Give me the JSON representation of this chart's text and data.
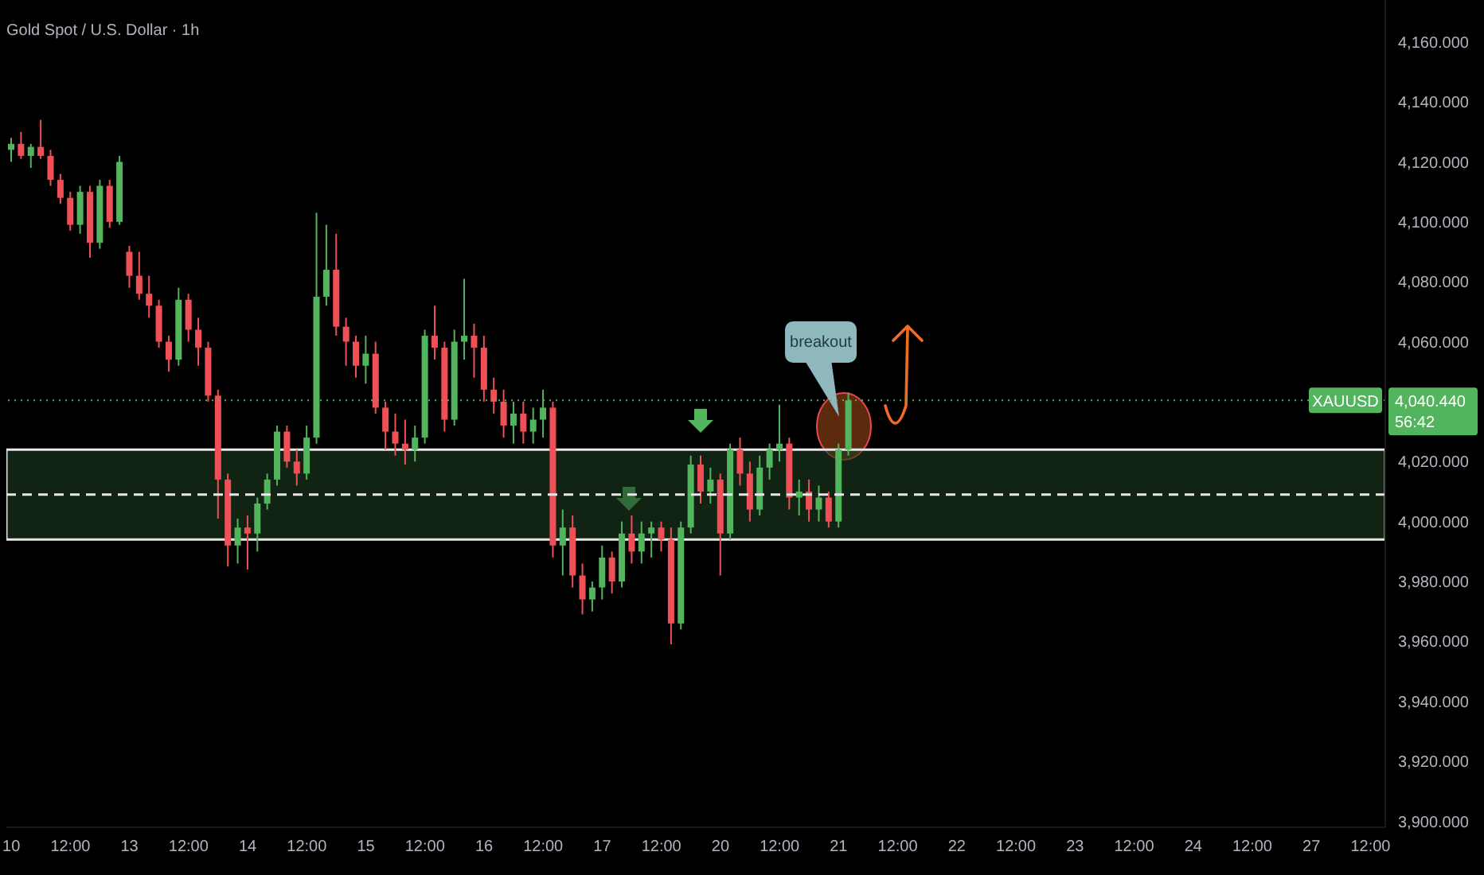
{
  "chart_data": {
    "type": "candlestick",
    "title": "Gold Spot / U.S. Dollar · 1h",
    "categories": [
      "10",
      null,
      null,
      null,
      null,
      null,
      "12:00",
      null,
      null,
      null,
      null,
      null,
      "13",
      null,
      null,
      null,
      null,
      null,
      "12:00",
      null,
      null,
      null,
      null,
      null,
      "14",
      null,
      null,
      null,
      null,
      null,
      "12:00",
      null,
      null,
      null,
      null,
      null,
      "15",
      null,
      null,
      null,
      null,
      null,
      "12:00",
      null,
      null,
      null,
      null,
      null,
      "16",
      null,
      null,
      null,
      null,
      null,
      "12:00",
      null,
      null,
      null,
      null,
      null,
      "17",
      null,
      null,
      null,
      null,
      null,
      "12:00",
      null,
      null,
      null,
      null,
      null,
      "20",
      null,
      null,
      null,
      null,
      null,
      "12:00",
      null,
      null,
      null,
      null,
      null,
      "21",
      null,
      null,
      null,
      null,
      null,
      "12:00",
      null,
      null,
      null,
      null,
      null,
      "22",
      null,
      null,
      null,
      null,
      null,
      "12:00",
      null,
      null,
      null,
      null,
      null,
      "23",
      null,
      null,
      null,
      null,
      null,
      "12:00",
      null,
      null,
      null,
      null,
      null,
      "24",
      null,
      null,
      null,
      null,
      null,
      "12:00",
      null,
      null,
      null,
      null,
      null,
      "27",
      null,
      null,
      null,
      null,
      null,
      "12:00",
      null
    ],
    "ohlc": [
      [
        4124,
        4128,
        4120,
        4126
      ],
      [
        4126,
        4130,
        4121,
        4122
      ],
      [
        4122,
        4126,
        4118,
        4125
      ],
      [
        4125,
        4134,
        4121,
        4122
      ],
      [
        4122,
        4124,
        4112,
        4114
      ],
      [
        4114,
        4116,
        4106,
        4108
      ],
      [
        4108,
        4110,
        4097,
        4099
      ],
      [
        4099,
        4112,
        4096,
        4110
      ],
      [
        4110,
        4112,
        4088,
        4093
      ],
      [
        4093,
        4114,
        4091,
        4112
      ],
      [
        4112,
        4114,
        4098,
        4100
      ],
      [
        4100,
        4122,
        4099,
        4120
      ],
      [
        4090,
        4092,
        4078,
        4082
      ],
      [
        4082,
        4090,
        4074,
        4076
      ],
      [
        4076,
        4082,
        4068,
        4072
      ],
      [
        4072,
        4074,
        4058,
        4060
      ],
      [
        4060,
        4062,
        4050,
        4054
      ],
      [
        4054,
        4078,
        4052,
        4074
      ],
      [
        4074,
        4076,
        4060,
        4064
      ],
      [
        4064,
        4068,
        4052,
        4058
      ],
      [
        4058,
        4060,
        4040,
        4042
      ],
      [
        4042,
        4044,
        4001,
        4014
      ],
      [
        4014,
        4016,
        3985,
        3992
      ],
      [
        3992,
        4001,
        3986,
        3998
      ],
      [
        3998,
        4002,
        3984,
        3996
      ],
      [
        3996,
        4008,
        3990,
        4006
      ],
      [
        4006,
        4016,
        4004,
        4014
      ],
      [
        4014,
        4032,
        4012,
        4030
      ],
      [
        4030,
        4032,
        4018,
        4020
      ],
      [
        4020,
        4024,
        4012,
        4016
      ],
      [
        4016,
        4032,
        4014,
        4028
      ],
      [
        4028,
        4103,
        4026,
        4075
      ],
      [
        4075,
        4099,
        4072,
        4084
      ],
      [
        4084,
        4096,
        4062,
        4065
      ],
      [
        4065,
        4068,
        4052,
        4060
      ],
      [
        4060,
        4062,
        4048,
        4052
      ],
      [
        4052,
        4062,
        4046,
        4056
      ],
      [
        4056,
        4060,
        4036,
        4038
      ],
      [
        4038,
        4040,
        4024,
        4030
      ],
      [
        4030,
        4036,
        4022,
        4026
      ],
      [
        4026,
        4034,
        4019,
        4024
      ],
      [
        4024,
        4032,
        4020,
        4028
      ],
      [
        4028,
        4064,
        4026,
        4062
      ],
      [
        4062,
        4072,
        4054,
        4058
      ],
      [
        4058,
        4060,
        4030,
        4034
      ],
      [
        4034,
        4064,
        4032,
        4060
      ],
      [
        4060,
        4081,
        4054,
        4062
      ],
      [
        4062,
        4066,
        4048,
        4058
      ],
      [
        4058,
        4062,
        4040,
        4044
      ],
      [
        4044,
        4048,
        4036,
        4040
      ],
      [
        4040,
        4044,
        4028,
        4032
      ],
      [
        4032,
        4040,
        4026,
        4036
      ],
      [
        4036,
        4040,
        4026,
        4030
      ],
      [
        4030,
        4038,
        4026,
        4034
      ],
      [
        4034,
        4044,
        4028,
        4038
      ],
      [
        4038,
        4040,
        3988,
        3992
      ],
      [
        3992,
        4004,
        3982,
        3998
      ],
      [
        3998,
        4002,
        3978,
        3982
      ],
      [
        3982,
        3986,
        3969,
        3974
      ],
      [
        3974,
        3980,
        3970,
        3978
      ],
      [
        3978,
        3992,
        3974,
        3988
      ],
      [
        3988,
        3990,
        3976,
        3980
      ],
      [
        3980,
        4000,
        3978,
        3996
      ],
      [
        3996,
        4002,
        3986,
        3990
      ],
      [
        3990,
        4000,
        3986,
        3996
      ],
      [
        3996,
        4000,
        3988,
        3998
      ],
      [
        3998,
        4000,
        3990,
        3994
      ],
      [
        3994,
        3998,
        3959,
        3966
      ],
      [
        3966,
        4000,
        3964,
        3998
      ],
      [
        3998,
        4022,
        3996,
        4019
      ],
      [
        4019,
        4022,
        4006,
        4010
      ],
      [
        4010,
        4018,
        4006,
        4014
      ],
      [
        4014,
        4016,
        3982,
        3996
      ],
      [
        3996,
        4026,
        3994,
        4024
      ],
      [
        4024,
        4028,
        4012,
        4016
      ],
      [
        4016,
        4020,
        4000,
        4004
      ],
      [
        4004,
        4022,
        4002,
        4018
      ],
      [
        4018,
        4026,
        4014,
        4024
      ],
      [
        4024,
        4039,
        4020,
        4026
      ],
      [
        4026,
        4028,
        4004,
        4008
      ],
      [
        4008,
        4014,
        4002,
        4010
      ],
      [
        4010,
        4014,
        4000,
        4004
      ],
      [
        4004,
        4012,
        4000,
        4008
      ],
      [
        4008,
        4010,
        3998,
        4000
      ],
      [
        4000,
        4026,
        3998,
        4024
      ],
      [
        4024,
        4043,
        4022,
        4040.44
      ],
      null,
      null,
      null,
      null,
      null,
      null,
      null,
      null,
      null,
      null,
      null,
      null,
      null,
      null,
      null,
      null,
      null,
      null,
      null,
      null,
      null,
      null,
      null,
      null,
      null,
      null,
      null,
      null,
      null,
      null,
      null,
      null,
      null,
      null,
      null,
      null,
      null,
      null,
      null,
      null,
      null,
      null,
      null,
      null,
      null,
      null,
      null,
      null,
      null,
      null,
      null,
      null,
      null,
      null
    ],
    "colors": [
      "#53b45e",
      "#ef4f57",
      "#53b45e",
      "#ef4f57",
      "#ef4f57",
      "#ef4f57",
      "#ef4f57",
      "#53b45e",
      "#ef4f57",
      "#53b45e",
      "#ef4f57",
      "#53b45e",
      "#ef4f57",
      "#ef4f57",
      "#ef4f57",
      "#ef4f57",
      "#ef4f57",
      "#53b45e",
      "#ef4f57",
      "#ef4f57",
      "#ef4f57",
      "#ef4f57",
      "#ef4f57",
      "#53b45e",
      "#ef4f57",
      "#53b45e",
      "#53b45e",
      "#53b45e",
      "#ef4f57",
      "#ef4f57",
      "#53b45e",
      "#53b45e",
      "#53b45e",
      "#ef4f57",
      "#ef4f57",
      "#ef4f57",
      "#53b45e",
      "#ef4f57",
      "#ef4f57",
      "#ef4f57",
      "#ef4f57",
      "#53b45e",
      "#53b45e",
      "#ef4f57",
      "#ef4f57",
      "#53b45e",
      "#53b45e",
      "#ef4f57",
      "#ef4f57",
      "#ef4f57",
      "#ef4f57",
      "#53b45e",
      "#ef4f57",
      "#53b45e",
      "#53b45e",
      "#ef4f57",
      "#53b45e",
      "#ef4f57",
      "#ef4f57",
      "#53b45e",
      "#53b45e",
      "#ef4f57",
      "#53b45e",
      "#ef4f57",
      "#53b45e",
      "#53b45e",
      "#ef4f57",
      "#ef4f57",
      "#53b45e",
      "#53b45e",
      "#ef4f57",
      "#53b45e",
      "#ef4f57",
      "#53b45e",
      "#ef4f57",
      "#ef4f57",
      "#53b45e",
      "#53b45e",
      "#53b45e",
      "#ef4f57",
      "#53b45e",
      "#ef4f57",
      "#53b45e",
      "#ef4f57",
      "#53b45e",
      "#53b45e",
      null,
      null,
      null,
      null,
      null,
      null,
      null,
      null,
      null,
      null,
      null,
      null,
      null,
      null,
      null,
      null,
      null,
      null,
      null,
      null,
      null,
      null,
      null,
      null,
      null,
      null,
      null,
      null,
      null,
      null,
      null,
      null,
      null,
      null,
      null,
      null,
      null,
      null,
      null,
      null,
      null,
      null,
      null,
      null,
      null,
      null,
      null,
      null,
      null,
      null,
      null,
      null,
      null,
      null
    ],
    "ylim": [
      3898,
      4174
    ],
    "yticks": [
      {
        "value": 3900,
        "label": "3,900.000"
      },
      {
        "value": 3920,
        "label": "3,920.000"
      },
      {
        "value": 3940,
        "label": "3,940.000"
      },
      {
        "value": 3960,
        "label": "3,960.000"
      },
      {
        "value": 3980,
        "label": "3,980.000"
      },
      {
        "value": 4000,
        "label": "4,000.000"
      },
      {
        "value": 4020,
        "label": "4,020.000"
      },
      {
        "value": 4060,
        "label": "4,060.000"
      },
      {
        "value": 4080,
        "label": "4,080.000"
      },
      {
        "value": 4100,
        "label": "4,100.000"
      },
      {
        "value": 4120,
        "label": "4,120.000"
      },
      {
        "value": 4140,
        "label": "4,140.000"
      },
      {
        "value": 4160,
        "label": "4,160.000"
      }
    ],
    "bands": [
      {
        "axis": "y",
        "from": 3994,
        "to": 4024,
        "color": "#1c3a1e"
      }
    ],
    "ref_lines": [
      {
        "axis": "y",
        "value": 4009,
        "line_style": "dashed",
        "color": "#e8e8e8"
      },
      {
        "axis": "y",
        "value": 4040.44,
        "label": "4,040.440",
        "line_style": "dotted",
        "color": "#53b45e"
      }
    ],
    "annotations": [
      "breakout",
      "XAUUSD",
      "56:42"
    ]
  }
}
